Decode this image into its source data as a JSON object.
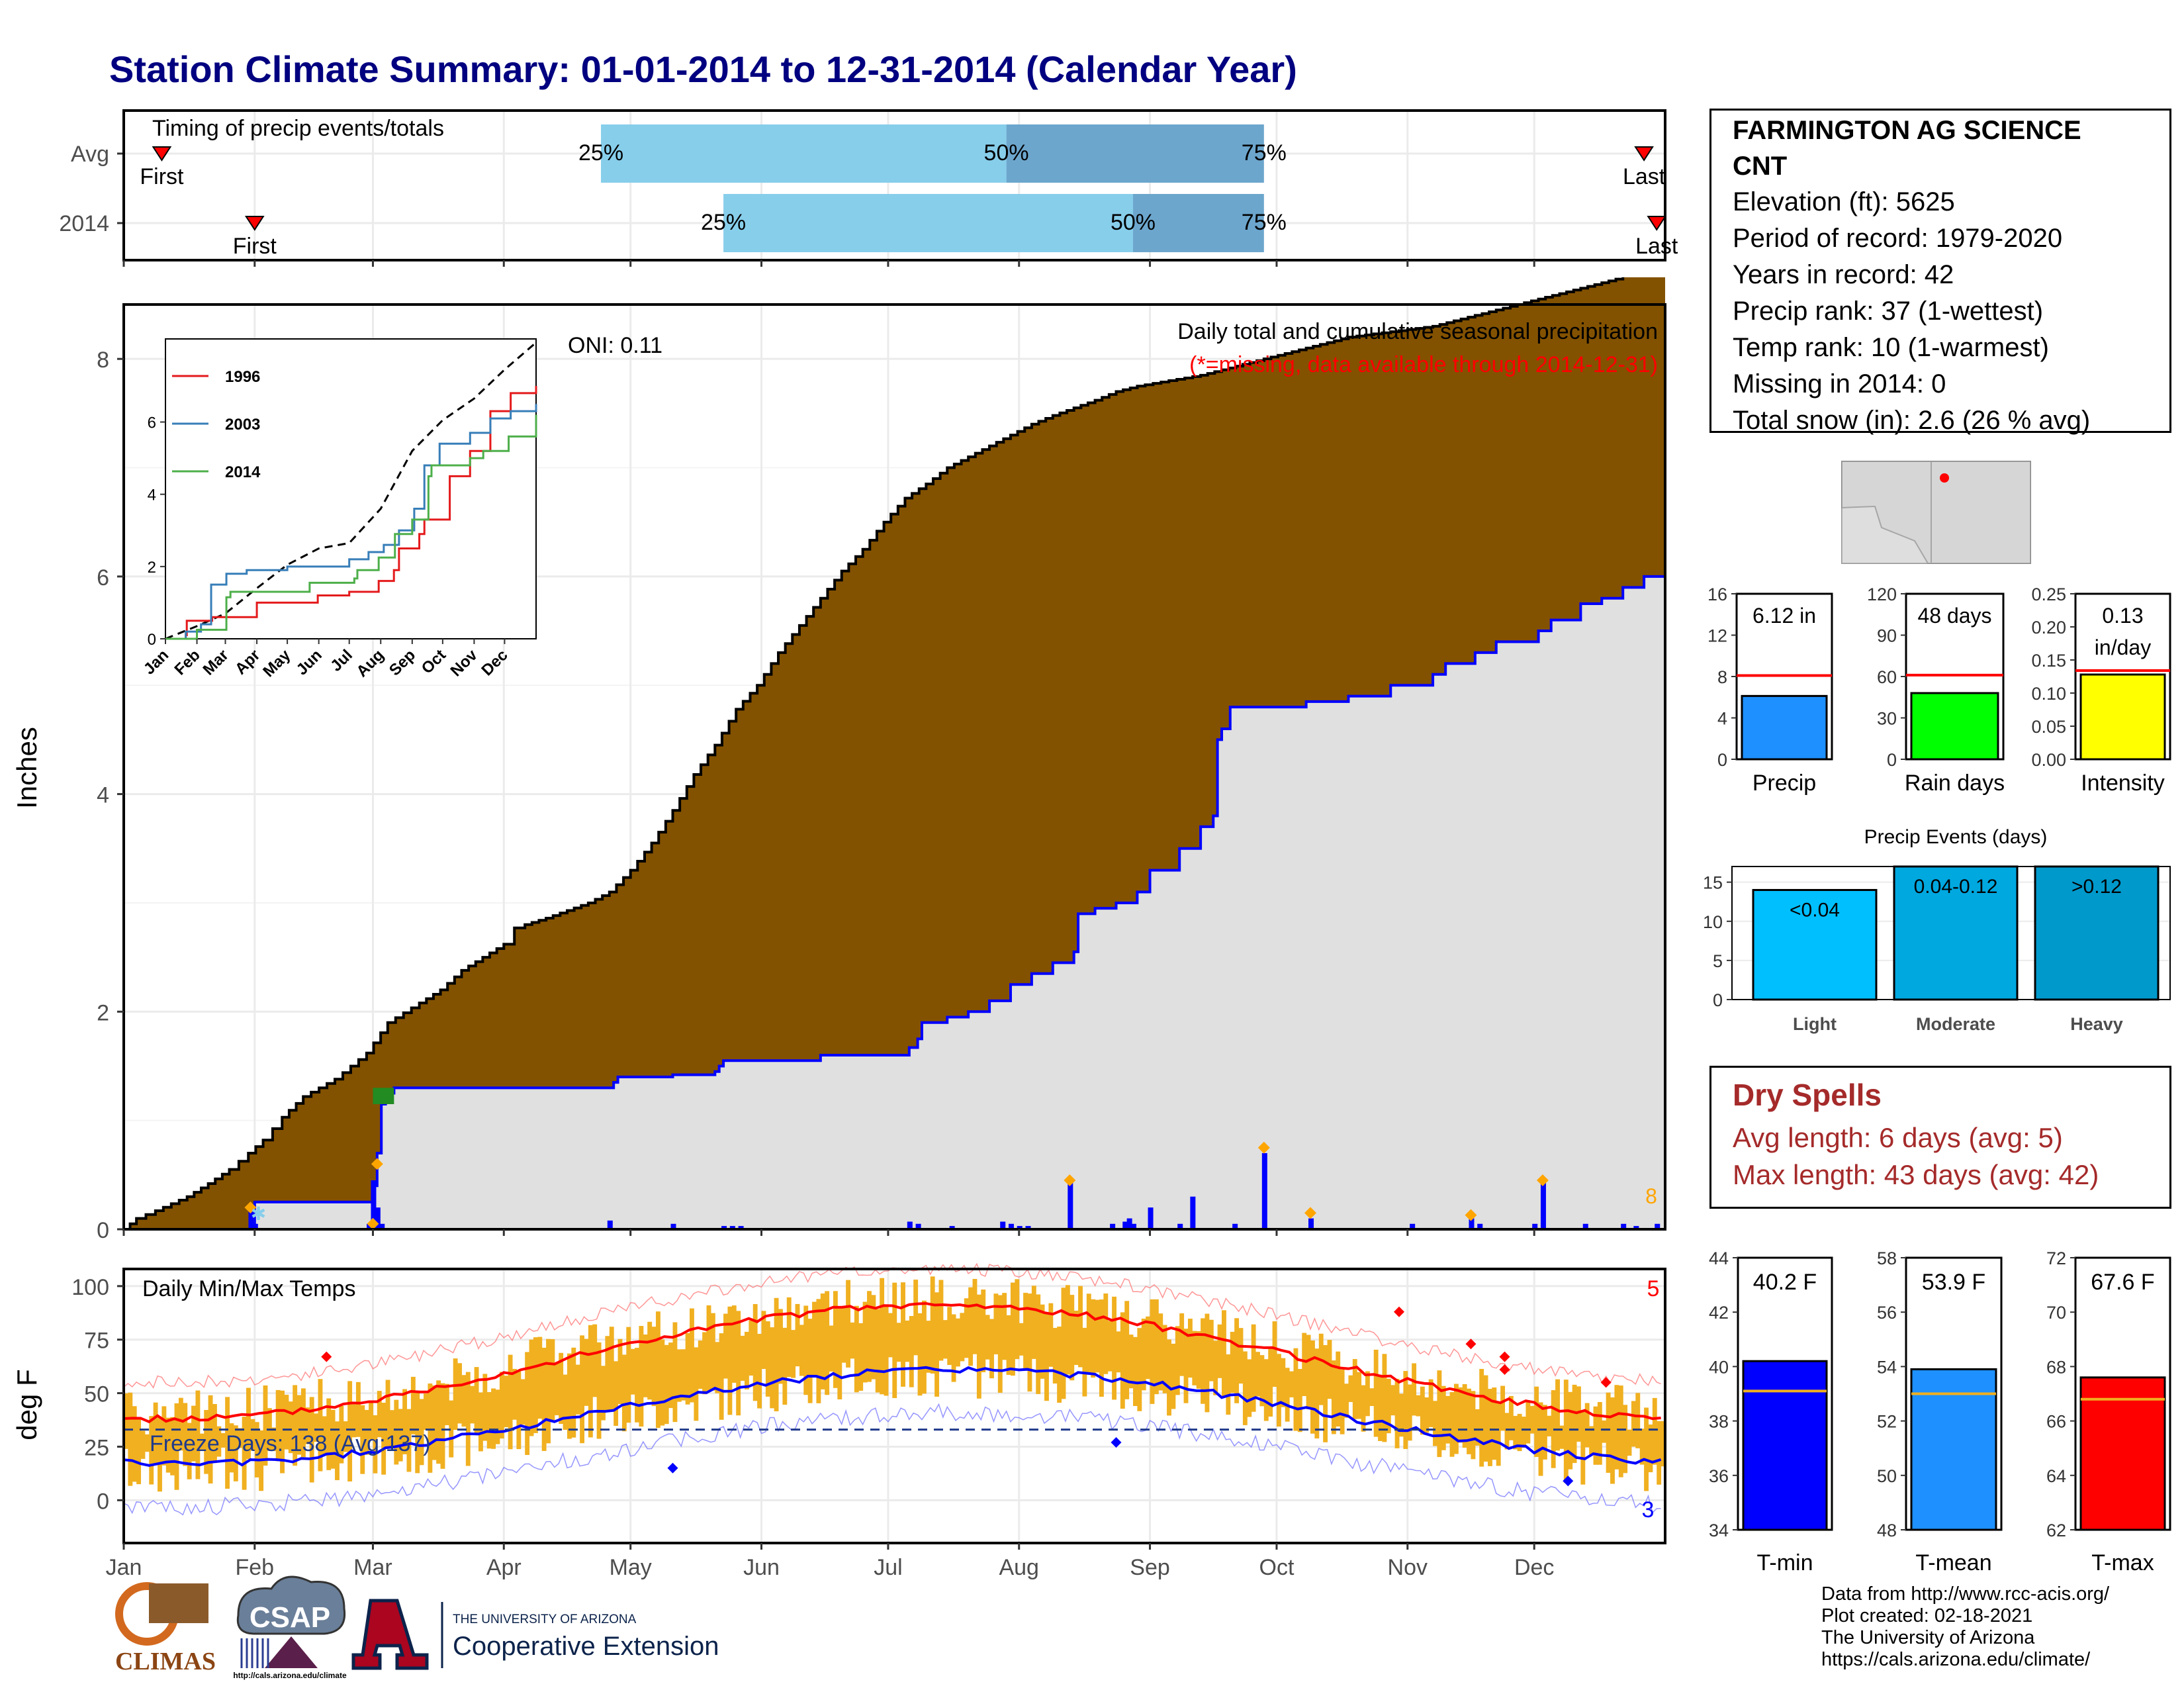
{
  "title": "Station Climate Summary: 01-01-2014 to 12-31-2014 (Calendar Year)",
  "colors": {
    "title": "#000080",
    "cum_fill": "#835200",
    "obs_fill": "#e0e0e0",
    "obs_line": "#0000ff",
    "bar_25_50": "#87ceeb",
    "bar_50_75": "#6ca6cd",
    "precip": "#1e90ff",
    "raindays": "#00ff00",
    "intensity": "#ffff00",
    "tmin": "#0000ff",
    "tmean": "#1e90ff",
    "tmax": "#ff0000",
    "temp_range": "#f0b020",
    "avg_line_red": "#ff0000",
    "dry": "#a52a2a",
    "light": "#00bfff",
    "moderate": "#00a8e0",
    "heavy": "#0099cc",
    "marker": "#ffa500"
  },
  "timing": {
    "label": "Timing of precip events/totals",
    "rows": [
      "Avg",
      "2014"
    ],
    "marker_labels": {
      "first": "First",
      "last": "Last"
    },
    "pct_labels": [
      "25%",
      "50%",
      "75%"
    ],
    "avg": {
      "first": "2014-01-10",
      "p25": "2014-04-24",
      "p50": "2014-07-29",
      "p75": "2014-09-28",
      "last": "2014-12-27"
    },
    "y2014": {
      "first": "2014-02-01",
      "p25": "2014-05-23",
      "p50": "2014-08-28",
      "p75": "2014-09-28",
      "last": "2014-12-30"
    }
  },
  "precip_panel": {
    "ylabel": "Inches",
    "oni": "ONI: 0.11",
    "heading": "Daily total and cumulative seasonal precipitation",
    "note": "(*=missing, data available through 2014-12-31)",
    "ylim": [
      0,
      8.5
    ],
    "yticks": [
      0,
      2,
      4,
      6,
      8
    ],
    "events_count": "8",
    "cum_avg": [
      [
        0,
        0
      ],
      [
        6,
        0.1
      ],
      [
        15,
        0.17
      ],
      [
        30,
        0.3
      ],
      [
        40,
        0.42
      ],
      [
        50,
        0.55
      ],
      [
        59,
        0.7
      ],
      [
        66,
        0.82
      ],
      [
        75,
        1.03
      ],
      [
        85,
        1.22
      ],
      [
        100,
        1.38
      ],
      [
        115,
        1.62
      ],
      [
        125,
        1.9
      ],
      [
        140,
        2.08
      ],
      [
        150,
        2.2
      ],
      [
        160,
        2.38
      ],
      [
        170,
        2.5
      ],
      [
        180,
        2.62
      ],
      [
        185,
        2.77
      ],
      [
        190,
        2.8
      ],
      [
        200,
        2.86
      ],
      [
        210,
        2.93
      ],
      [
        220,
        3.0
      ],
      [
        230,
        3.1
      ],
      [
        240,
        3.3
      ],
      [
        250,
        3.55
      ],
      [
        260,
        3.85
      ],
      [
        270,
        4.18
      ],
      [
        280,
        4.45
      ],
      [
        290,
        4.78
      ],
      [
        300,
        5.0
      ],
      [
        310,
        5.3
      ],
      [
        320,
        5.55
      ],
      [
        330,
        5.8
      ],
      [
        340,
        6.05
      ],
      [
        350,
        6.25
      ],
      [
        360,
        6.5
      ],
      [
        370,
        6.72
      ],
      [
        380,
        6.85
      ],
      [
        390,
        7.0
      ],
      [
        400,
        7.1
      ],
      [
        410,
        7.2
      ],
      [
        420,
        7.3
      ],
      [
        430,
        7.4
      ],
      [
        440,
        7.48
      ],
      [
        450,
        7.55
      ],
      [
        460,
        7.62
      ],
      [
        470,
        7.7
      ],
      [
        480,
        7.75
      ],
      [
        495,
        7.8
      ],
      [
        510,
        7.85
      ],
      [
        520,
        7.9
      ],
      [
        530,
        7.95
      ],
      [
        540,
        8.0
      ],
      [
        550,
        8.05
      ],
      [
        560,
        8.1
      ],
      [
        570,
        8.15
      ],
      [
        580,
        8.2
      ],
      [
        600,
        8.25
      ],
      [
        620,
        8.3
      ],
      [
        630,
        8.35
      ],
      [
        640,
        8.4
      ],
      [
        650,
        8.45
      ],
      [
        660,
        8.5
      ],
      [
        670,
        8.55
      ],
      [
        680,
        8.6
      ],
      [
        690,
        8.65
      ],
      [
        700,
        8.7
      ],
      [
        710,
        8.75
      ]
    ],
    "cum_2014": [
      [
        0,
        0
      ],
      [
        30,
        0
      ],
      [
        31,
        0.25
      ],
      [
        58,
        0.25
      ],
      [
        59,
        0.4
      ],
      [
        60,
        0.7
      ],
      [
        61,
        1.15
      ],
      [
        62,
        1.2
      ],
      [
        63,
        1.25
      ],
      [
        64,
        1.3
      ],
      [
        80,
        1.3
      ],
      [
        100,
        1.3
      ],
      [
        115,
        1.3
      ],
      [
        116,
        1.35
      ],
      [
        117,
        1.4
      ],
      [
        130,
        1.42
      ],
      [
        140,
        1.45
      ],
      [
        141,
        1.5
      ],
      [
        142,
        1.55
      ],
      [
        165,
        1.6
      ],
      [
        185,
        1.6
      ],
      [
        186,
        1.67
      ],
      [
        188,
        1.75
      ],
      [
        189,
        1.9
      ],
      [
        195,
        1.95
      ],
      [
        200,
        2.0
      ],
      [
        205,
        2.1
      ],
      [
        210,
        2.25
      ],
      [
        215,
        2.35
      ],
      [
        220,
        2.45
      ],
      [
        225,
        2.55
      ],
      [
        226,
        2.9
      ],
      [
        230,
        2.95
      ],
      [
        235,
        3.0
      ],
      [
        240,
        3.1
      ],
      [
        243,
        3.3
      ],
      [
        250,
        3.5
      ],
      [
        255,
        3.7
      ],
      [
        258,
        3.8
      ],
      [
        259,
        4.5
      ],
      [
        260,
        4.6
      ],
      [
        262,
        4.8
      ],
      [
        270,
        4.8
      ],
      [
        280,
        4.85
      ],
      [
        290,
        4.9
      ],
      [
        300,
        5.0
      ],
      [
        310,
        5.1
      ],
      [
        313,
        5.2
      ],
      [
        320,
        5.3
      ],
      [
        325,
        5.4
      ],
      [
        335,
        5.5
      ],
      [
        338,
        5.6
      ],
      [
        345,
        5.75
      ],
      [
        350,
        5.8
      ],
      [
        355,
        5.9
      ],
      [
        360,
        6.0
      ],
      [
        365,
        6.12
      ]
    ],
    "daily_bars": [
      [
        30,
        0.2
      ],
      [
        31,
        0.05
      ],
      [
        58,
        0.05
      ],
      [
        59,
        0.45
      ],
      [
        60,
        0.2
      ],
      [
        61,
        0.05
      ],
      [
        115,
        0.08
      ],
      [
        130,
        0.05
      ],
      [
        142,
        0.03
      ],
      [
        144,
        0.03
      ],
      [
        146,
        0.03
      ],
      [
        186,
        0.07
      ],
      [
        188,
        0.05
      ],
      [
        196,
        0.03
      ],
      [
        208,
        0.07
      ],
      [
        210,
        0.05
      ],
      [
        212,
        0.03
      ],
      [
        214,
        0.03
      ],
      [
        224,
        0.45
      ],
      [
        234,
        0.05
      ],
      [
        237,
        0.07
      ],
      [
        239,
        0.05
      ],
      [
        238,
        0.1
      ],
      [
        243,
        0.2
      ],
      [
        250,
        0.05
      ],
      [
        253,
        0.3
      ],
      [
        263,
        0.05
      ],
      [
        270,
        0.7
      ],
      [
        281,
        0.1
      ],
      [
        305,
        0.05
      ],
      [
        319,
        0.1
      ],
      [
        321,
        0.05
      ],
      [
        334,
        0.05
      ],
      [
        336,
        0.45
      ],
      [
        346,
        0.05
      ],
      [
        355,
        0.05
      ],
      [
        358,
        0.03
      ],
      [
        363,
        0.05
      ]
    ],
    "markers": [
      [
        30,
        0.2
      ],
      [
        59,
        0.05
      ],
      [
        60,
        0.6
      ],
      [
        224,
        0.45
      ],
      [
        270,
        0.75
      ],
      [
        281,
        0.15
      ],
      [
        319,
        0.13
      ],
      [
        336,
        0.45
      ]
    ]
  },
  "inset": {
    "legend": [
      "1996",
      "2003",
      "2014"
    ],
    "ylim": [
      0,
      8.3
    ],
    "yticks": [
      0,
      2,
      4,
      6
    ],
    "months": [
      "Jan",
      "Feb",
      "Mar",
      "Apr",
      "May",
      "Jun",
      "Jul",
      "Aug",
      "Sep",
      "Oct",
      "Nov",
      "Dec"
    ],
    "avg": [
      [
        0,
        0
      ],
      [
        31,
        0.35
      ],
      [
        59,
        0.7
      ],
      [
        90,
        1.4
      ],
      [
        120,
        2.05
      ],
      [
        151,
        2.5
      ],
      [
        181,
        2.65
      ],
      [
        212,
        3.6
      ],
      [
        243,
        5.2
      ],
      [
        273,
        6.05
      ],
      [
        304,
        6.65
      ],
      [
        334,
        7.45
      ],
      [
        365,
        8.2
      ]
    ],
    "y1996": [
      [
        0,
        0
      ],
      [
        20,
        0.1
      ],
      [
        21,
        0.5
      ],
      [
        45,
        0.5
      ],
      [
        46,
        0.6
      ],
      [
        90,
        1.0
      ],
      [
        120,
        1.0
      ],
      [
        150,
        1.2
      ],
      [
        181,
        1.3
      ],
      [
        210,
        1.6
      ],
      [
        225,
        1.9
      ],
      [
        230,
        2.5
      ],
      [
        250,
        2.9
      ],
      [
        255,
        3.3
      ],
      [
        280,
        4.5
      ],
      [
        300,
        5.2
      ],
      [
        320,
        6.3
      ],
      [
        340,
        6.8
      ],
      [
        365,
        7.0
      ]
    ],
    "y2003": [
      [
        0,
        0
      ],
      [
        20,
        0.2
      ],
      [
        35,
        0.4
      ],
      [
        45,
        1.5
      ],
      [
        60,
        1.8
      ],
      [
        80,
        1.9
      ],
      [
        120,
        2.0
      ],
      [
        150,
        2.0
      ],
      [
        181,
        2.2
      ],
      [
        200,
        2.4
      ],
      [
        215,
        2.6
      ],
      [
        230,
        3.0
      ],
      [
        245,
        3.6
      ],
      [
        255,
        4.8
      ],
      [
        270,
        5.4
      ],
      [
        290,
        5.4
      ],
      [
        300,
        5.7
      ],
      [
        320,
        6.1
      ],
      [
        340,
        6.3
      ],
      [
        365,
        6.5
      ]
    ],
    "y2014": [
      [
        0,
        0
      ],
      [
        30,
        0
      ],
      [
        31,
        0.25
      ],
      [
        58,
        0.25
      ],
      [
        60,
        1.15
      ],
      [
        64,
        1.3
      ],
      [
        115,
        1.3
      ],
      [
        142,
        1.55
      ],
      [
        186,
        1.67
      ],
      [
        189,
        1.9
      ],
      [
        210,
        2.25
      ],
      [
        226,
        2.9
      ],
      [
        243,
        3.3
      ],
      [
        259,
        4.5
      ],
      [
        262,
        4.8
      ],
      [
        300,
        5.0
      ],
      [
        313,
        5.2
      ],
      [
        338,
        5.6
      ],
      [
        365,
        6.2
      ]
    ]
  },
  "temp_panel": {
    "ylabel": "deg F",
    "heading": "Daily Min/Max Temps",
    "freeze": "Freeze Days: 138 (Avg:137)",
    "record_high_count": "5",
    "record_low_count": "3",
    "ylim": [
      -20,
      108
    ],
    "yticks": [
      0,
      25,
      50,
      75,
      100
    ],
    "months": [
      "Jan",
      "Feb",
      "Mar",
      "Apr",
      "May",
      "Jun",
      "Jul",
      "Aug",
      "Sep",
      "Oct",
      "Nov",
      "Dec"
    ],
    "high_markers": [
      [
        48,
        67
      ],
      [
        302,
        88
      ],
      [
        319,
        73
      ],
      [
        327,
        67
      ],
      [
        327,
        61
      ],
      [
        351,
        55
      ]
    ],
    "low_markers": [
      [
        130,
        15
      ],
      [
        235,
        27
      ],
      [
        342,
        9
      ]
    ],
    "freeze_line": 33
  },
  "station": {
    "name_line1": "FARMINGTON AG SCIENCE",
    "name_line2": "CNT",
    "lines": [
      "Elevation (ft): 5625",
      "Period of record: 1979-2020",
      "Years in record: 42",
      "Precip rank: 37 (1-wettest)",
      "Temp rank: 10 (1-warmest)",
      "Missing in 2014: 0",
      "Total snow (in): 2.6 (26 % avg)"
    ]
  },
  "mini_bars": [
    {
      "label": "Precip",
      "value_label": "6.12 in",
      "value": 6.12,
      "avg": 8.1,
      "ylim": [
        0,
        16
      ],
      "yticks": [
        "0",
        "4",
        "8",
        "12",
        "16"
      ],
      "color": "#1e90ff"
    },
    {
      "label": "Rain days",
      "value_label": "48 days",
      "value": 48,
      "avg": 61,
      "ylim": [
        0,
        120
      ],
      "yticks": [
        "0",
        "30",
        "60",
        "90",
        "120"
      ],
      "color": "#00ff00"
    },
    {
      "label": "Intensity",
      "value_label": "0.13",
      "value_label2": "in/day",
      "value": 0.128,
      "avg": 0.134,
      "ylim": [
        0,
        0.25
      ],
      "yticks": [
        "0.00",
        "0.05",
        "0.10",
        "0.15",
        "0.20",
        "0.25"
      ],
      "color": "#ffff00"
    }
  ],
  "events": {
    "title": "Precip Events (days)",
    "ylim": [
      0,
      17
    ],
    "yticks": [
      "0",
      "5",
      "10",
      "15"
    ],
    "categories": [
      "Light",
      "Moderate",
      "Heavy"
    ],
    "bin_labels": [
      "<0.04",
      "0.04-0.12",
      ">0.12"
    ],
    "values": [
      14,
      17,
      17
    ]
  },
  "dry_spells": {
    "title": "Dry Spells",
    "avg": "Avg length: 6 days (avg: 5)",
    "max": "Max length: 43 days (avg: 42)"
  },
  "temp_bars": [
    {
      "label": "T-min",
      "value_label": "40.2 F",
      "value": 40.2,
      "avg": 39.1,
      "ylim": [
        34,
        44
      ],
      "yticks": [
        "34",
        "36",
        "38",
        "40",
        "42",
        "44"
      ],
      "color": "#0000ff"
    },
    {
      "label": "T-mean",
      "value_label": "53.9 F",
      "value": 53.9,
      "avg": 53.0,
      "ylim": [
        48,
        58
      ],
      "yticks": [
        "48",
        "50",
        "52",
        "54",
        "56",
        "58"
      ],
      "color": "#1e90ff"
    },
    {
      "label": "T-max",
      "value_label": "67.6 F",
      "value": 67.6,
      "avg": 66.8,
      "ylim": [
        62,
        72
      ],
      "yticks": [
        "62",
        "64",
        "66",
        "68",
        "70",
        "72"
      ],
      "color": "#ff0000"
    }
  ],
  "credits": [
    "Data from http://www.rcc-acis.org/",
    "Plot created: 02-18-2021",
    "The University of Arizona",
    "https://cals.arizona.edu/climate/"
  ],
  "logos": {
    "climas": "CLIMAS",
    "csap": "CSAP",
    "csap_url": "http://cals.arizona.edu/climate",
    "ua_top": "THE UNIVERSITY OF ARIZONA",
    "ua_main": "Cooperative Extension"
  }
}
